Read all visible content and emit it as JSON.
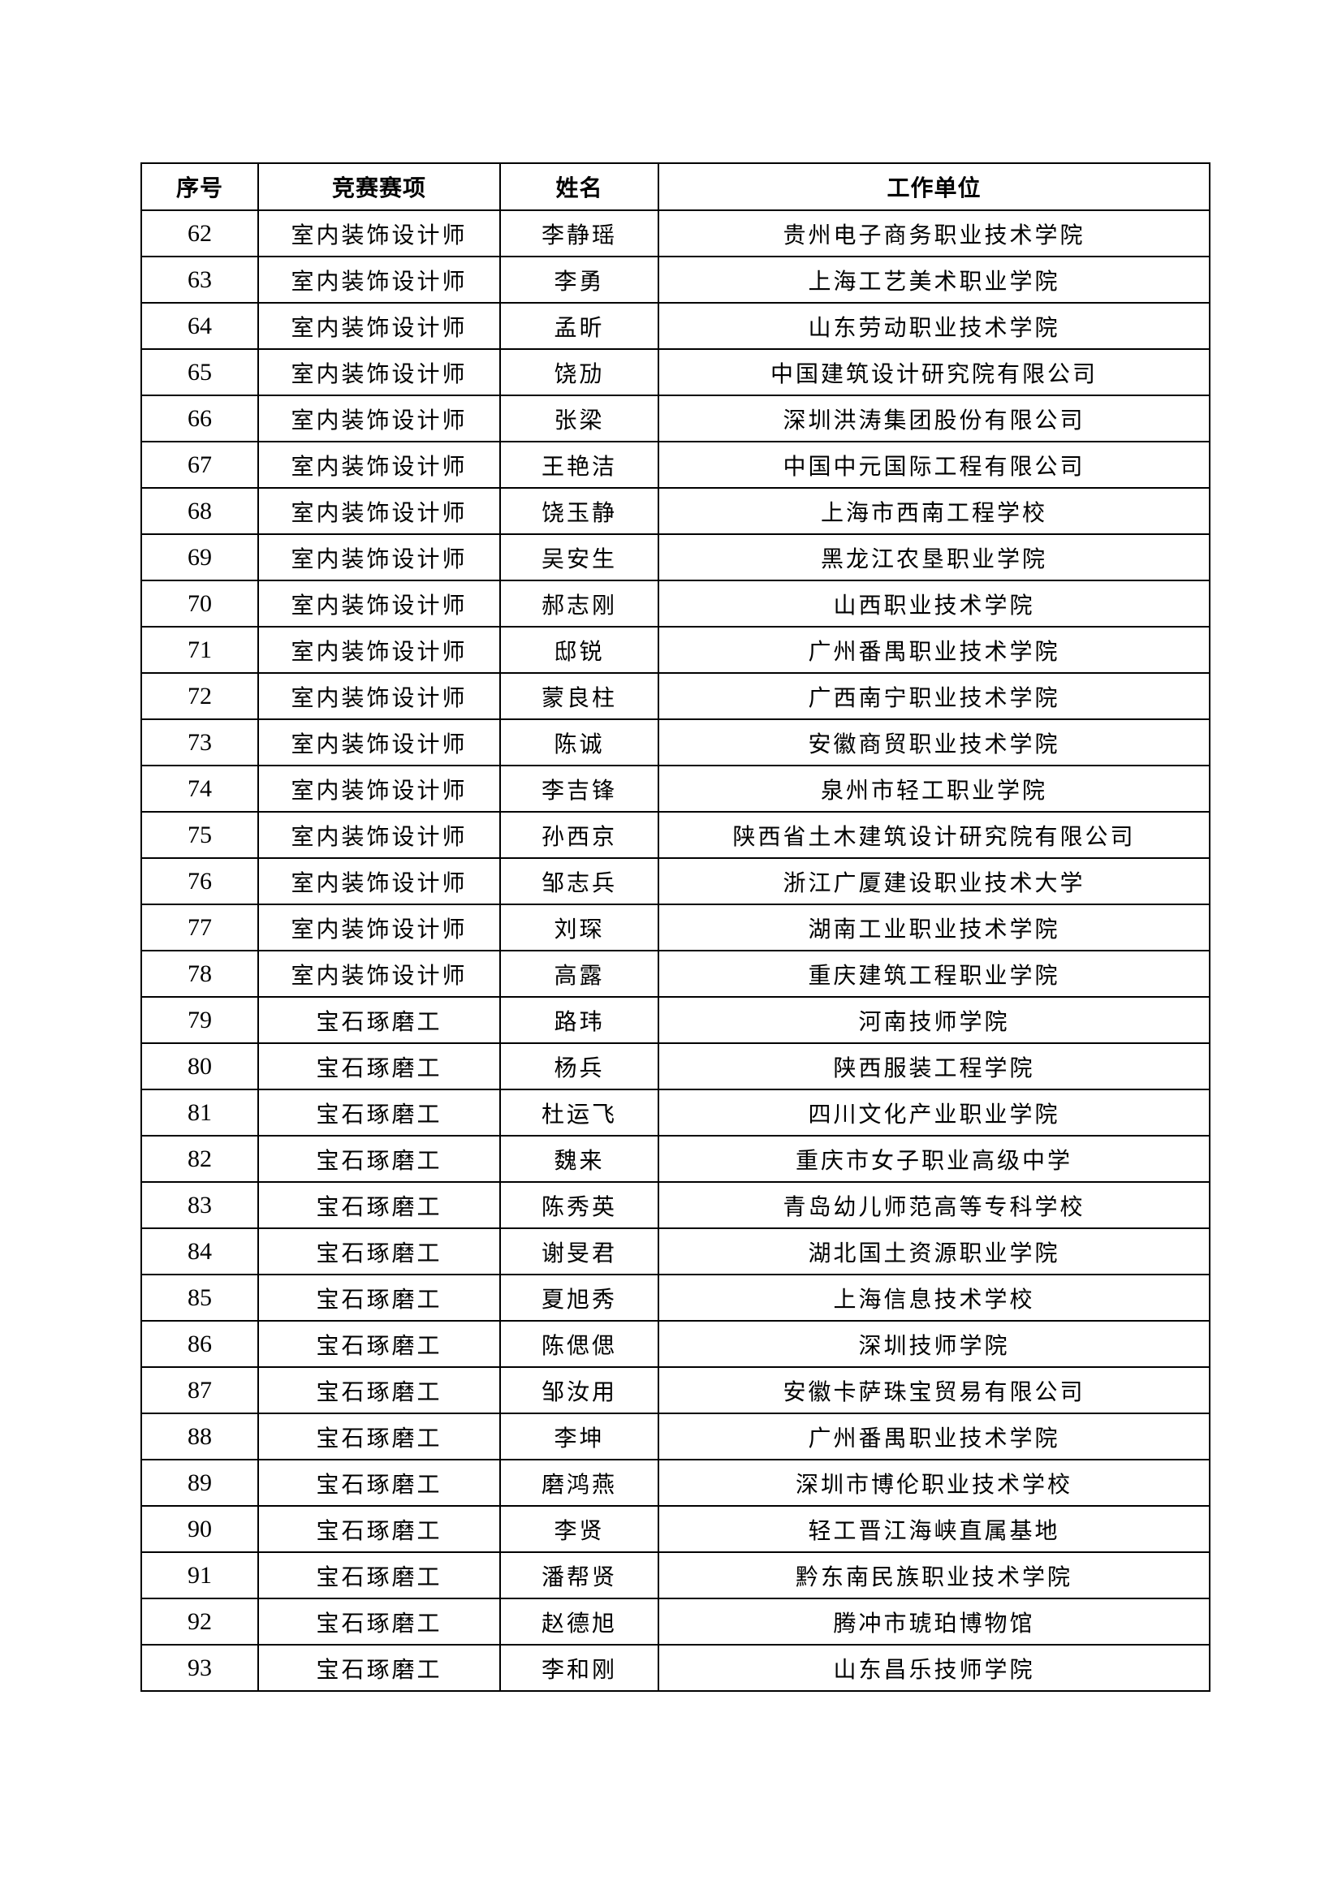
{
  "table": {
    "headers": [
      "序号",
      "竞赛赛项",
      "姓名",
      "工作单位"
    ],
    "rows": [
      [
        "62",
        "室内装饰设计师",
        "李静瑶",
        "贵州电子商务职业技术学院"
      ],
      [
        "63",
        "室内装饰设计师",
        "李勇",
        "上海工艺美术职业学院"
      ],
      [
        "64",
        "室内装饰设计师",
        "孟昕",
        "山东劳动职业技术学院"
      ],
      [
        "65",
        "室内装饰设计师",
        "饶劢",
        "中国建筑设计研究院有限公司"
      ],
      [
        "66",
        "室内装饰设计师",
        "张梁",
        "深圳洪涛集团股份有限公司"
      ],
      [
        "67",
        "室内装饰设计师",
        "王艳洁",
        "中国中元国际工程有限公司"
      ],
      [
        "68",
        "室内装饰设计师",
        "饶玉静",
        "上海市西南工程学校"
      ],
      [
        "69",
        "室内装饰设计师",
        "吴安生",
        "黑龙江农垦职业学院"
      ],
      [
        "70",
        "室内装饰设计师",
        "郝志刚",
        "山西职业技术学院"
      ],
      [
        "71",
        "室内装饰设计师",
        "邸锐",
        "广州番禺职业技术学院"
      ],
      [
        "72",
        "室内装饰设计师",
        "蒙良柱",
        "广西南宁职业技术学院"
      ],
      [
        "73",
        "室内装饰设计师",
        "陈诚",
        "安徽商贸职业技术学院"
      ],
      [
        "74",
        "室内装饰设计师",
        "李吉锋",
        "泉州市轻工职业学院"
      ],
      [
        "75",
        "室内装饰设计师",
        "孙西京",
        "陕西省土木建筑设计研究院有限公司"
      ],
      [
        "76",
        "室内装饰设计师",
        "邹志兵",
        "浙江广厦建设职业技术大学"
      ],
      [
        "77",
        "室内装饰设计师",
        "刘琛",
        "湖南工业职业技术学院"
      ],
      [
        "78",
        "室内装饰设计师",
        "高露",
        "重庆建筑工程职业学院"
      ],
      [
        "79",
        "宝石琢磨工",
        "路玮",
        "河南技师学院"
      ],
      [
        "80",
        "宝石琢磨工",
        "杨兵",
        "陕西服装工程学院"
      ],
      [
        "81",
        "宝石琢磨工",
        "杜运飞",
        "四川文化产业职业学院"
      ],
      [
        "82",
        "宝石琢磨工",
        "魏来",
        "重庆市女子职业高级中学"
      ],
      [
        "83",
        "宝石琢磨工",
        "陈秀英",
        "青岛幼儿师范高等专科学校"
      ],
      [
        "84",
        "宝石琢磨工",
        "谢旻君",
        "湖北国土资源职业学院"
      ],
      [
        "85",
        "宝石琢磨工",
        "夏旭秀",
        "上海信息技术学校"
      ],
      [
        "86",
        "宝石琢磨工",
        "陈偲偲",
        "深圳技师学院"
      ],
      [
        "87",
        "宝石琢磨工",
        "邹汝用",
        "安徽卡萨珠宝贸易有限公司"
      ],
      [
        "88",
        "宝石琢磨工",
        "李坤",
        "广州番禺职业技术学院"
      ],
      [
        "89",
        "宝石琢磨工",
        "磨鸿燕",
        "深圳市博伦职业技术学校"
      ],
      [
        "90",
        "宝石琢磨工",
        "李贤",
        "轻工晋江海峡直属基地"
      ],
      [
        "91",
        "宝石琢磨工",
        "潘帮贤",
        "黔东南民族职业技术学院"
      ],
      [
        "92",
        "宝石琢磨工",
        "赵德旭",
        "腾冲市琥珀博物馆"
      ],
      [
        "93",
        "宝石琢磨工",
        "李和刚",
        "山东昌乐技师学院"
      ]
    ]
  }
}
